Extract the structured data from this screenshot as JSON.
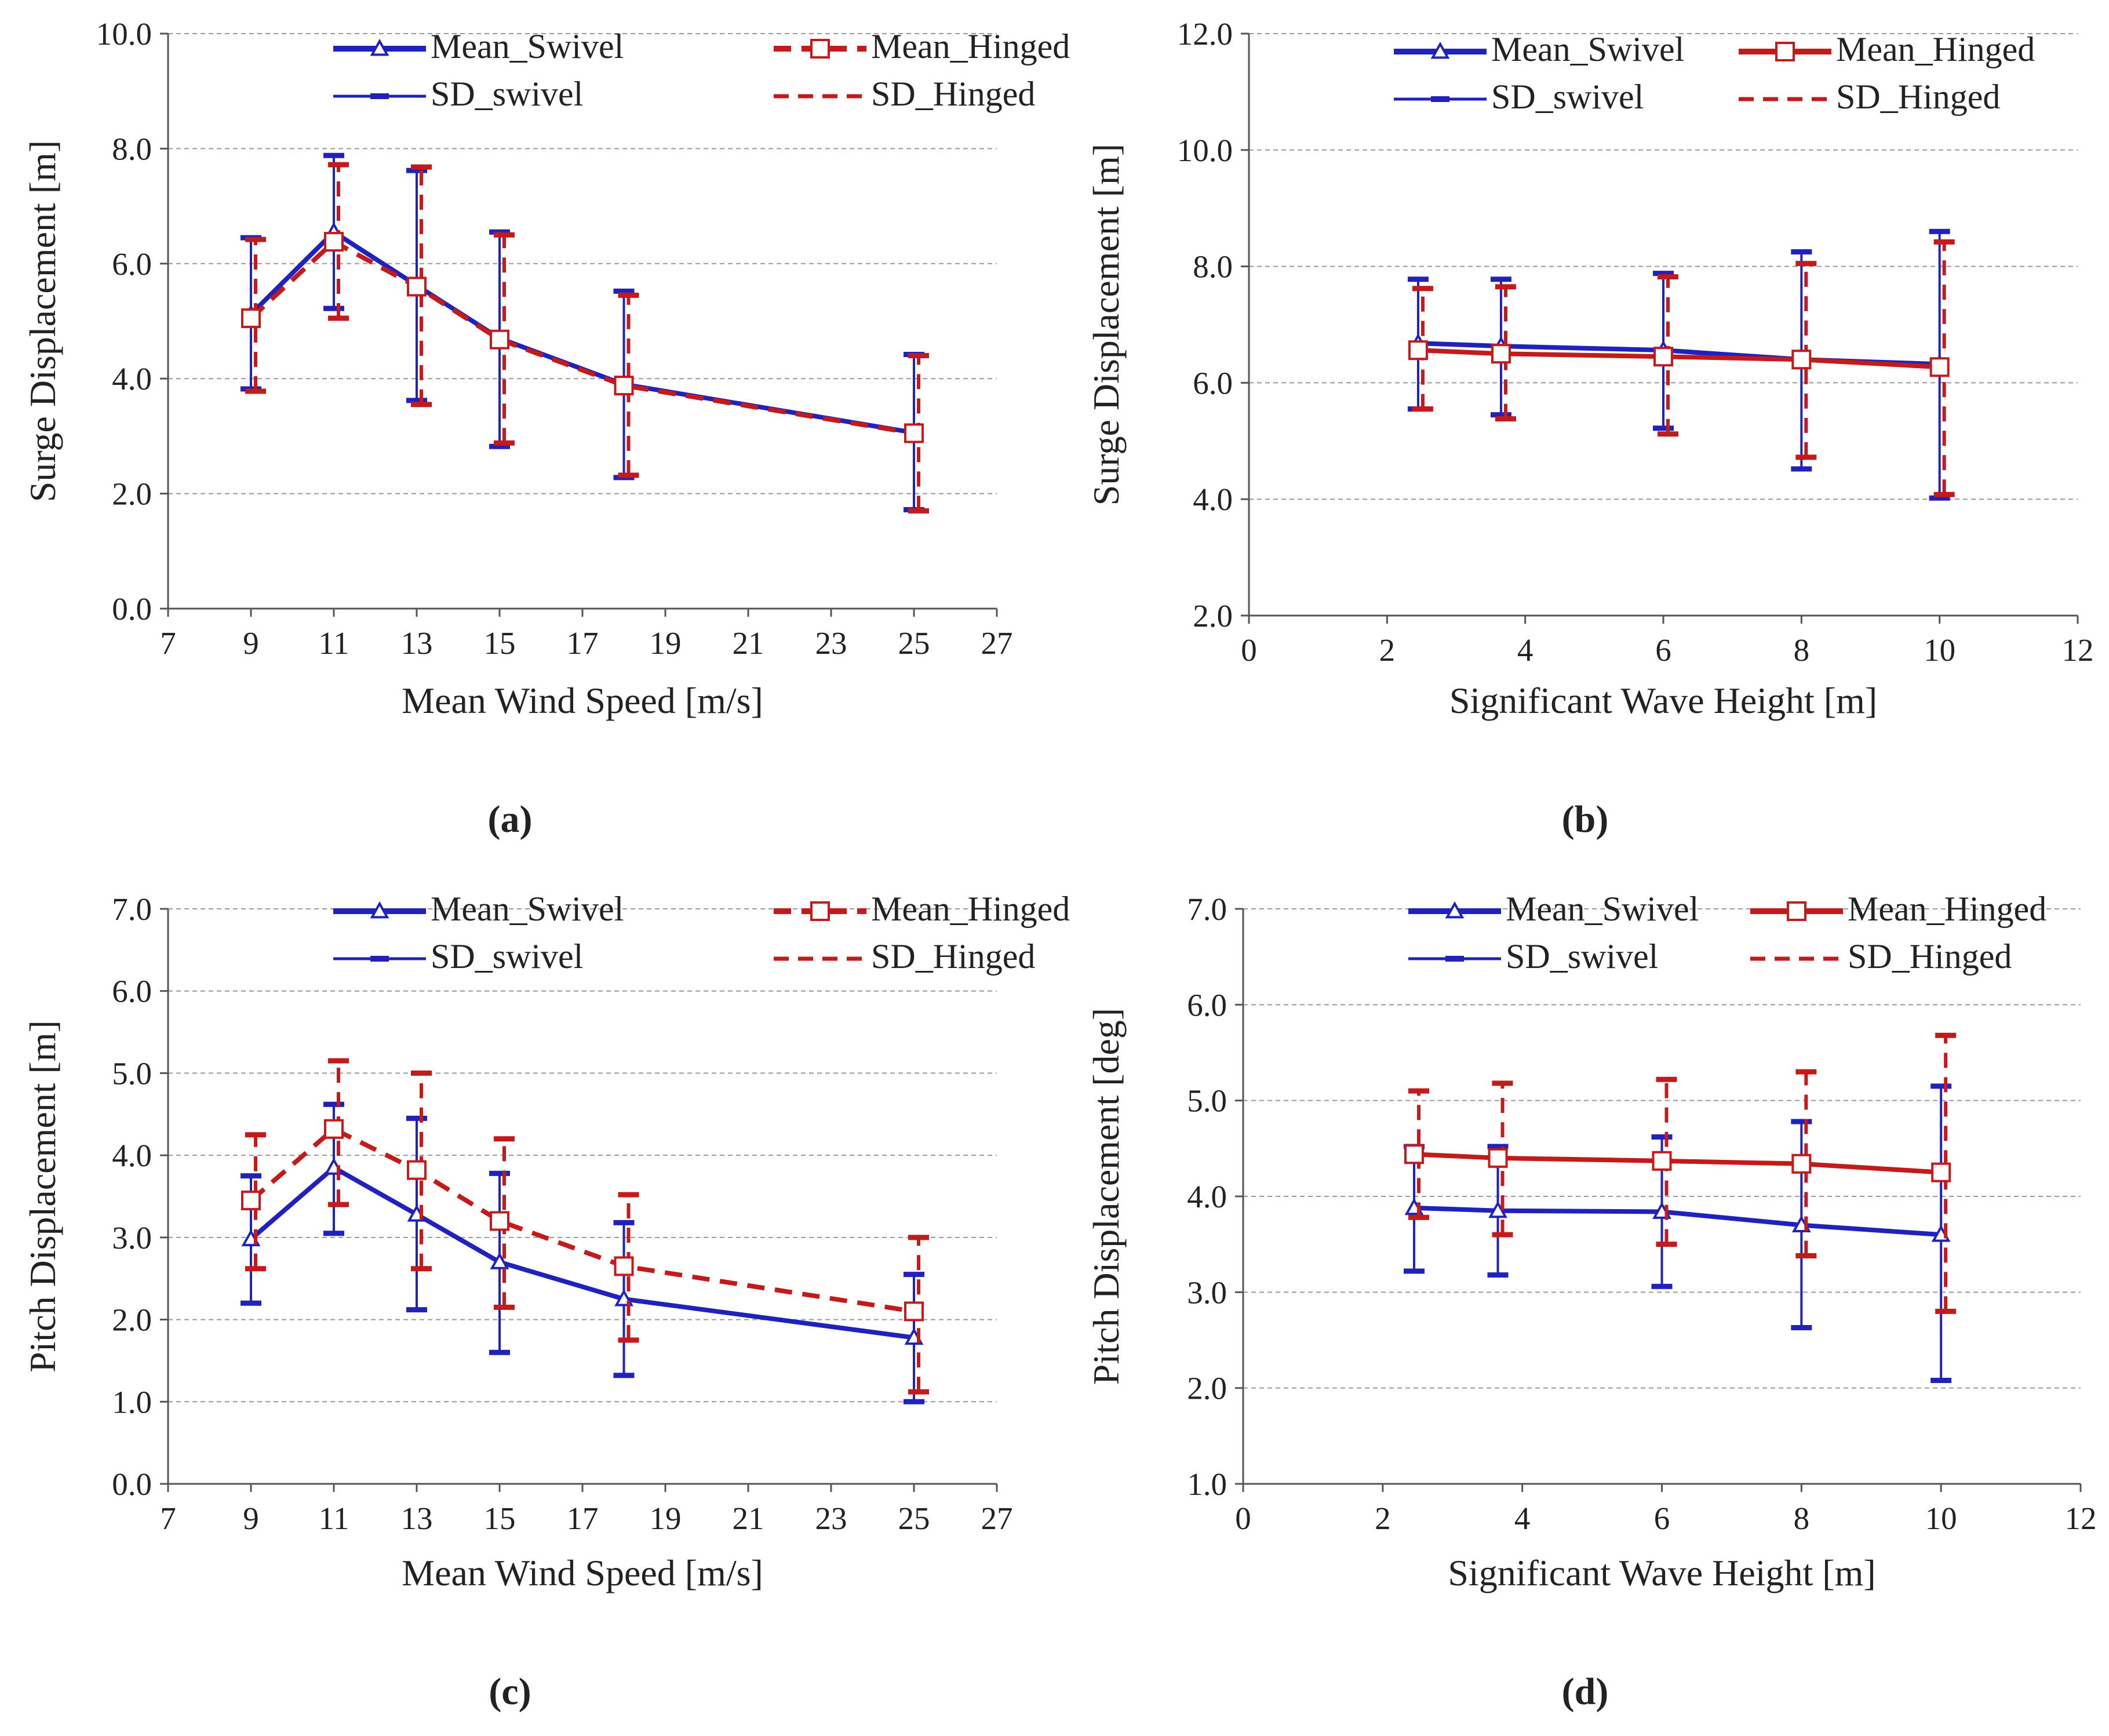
{
  "colors": {
    "swivel": "#1f22bd",
    "hinged": "#c41a1a",
    "grid": "#9a9a9a",
    "axis": "#555555"
  },
  "chart_data": [
    {
      "id": "a",
      "caption": "(a)",
      "type": "line",
      "xlabel": "Mean Wind Speed [m/s]",
      "ylabel": "Surge Displacement [m]",
      "xlim": [
        7,
        27
      ],
      "ylim": [
        0,
        10
      ],
      "xticks": [
        "7",
        "9",
        "11",
        "13",
        "15",
        "17",
        "19",
        "21",
        "23",
        "25",
        "27"
      ],
      "yticks": [
        "0.0",
        "2.0",
        "4.0",
        "6.0",
        "8.0",
        "10.0"
      ],
      "legend": [
        "Mean_Swivel",
        "Mean_Hinged",
        "SD_swivel",
        "SD_Hinged"
      ],
      "legend_position": "top-right",
      "grid": true,
      "hinged_line_style": "dashed",
      "x": [
        9,
        11,
        13,
        15,
        18,
        25
      ],
      "series": [
        {
          "name": "Mean_Swivel",
          "values": [
            5.12,
            6.55,
            5.62,
            4.7,
            3.9,
            3.06
          ],
          "sd_low": [
            3.82,
            5.22,
            3.62,
            2.82,
            2.28,
            1.72
          ],
          "sd_high": [
            6.45,
            7.88,
            7.62,
            6.55,
            5.52,
            4.42
          ]
        },
        {
          "name": "Mean_Hinged",
          "values": [
            5.05,
            6.38,
            5.6,
            4.68,
            3.88,
            3.05
          ],
          "sd_low": [
            3.78,
            5.05,
            3.55,
            2.88,
            2.32,
            1.7
          ],
          "sd_high": [
            6.42,
            7.72,
            7.68,
            6.5,
            5.45,
            4.4
          ]
        }
      ]
    },
    {
      "id": "b",
      "caption": "(b)",
      "type": "line",
      "xlabel": "Significant Wave Height [m]",
      "ylabel": "Surge Displacement [m]",
      "xlim": [
        0,
        12
      ],
      "ylim": [
        2,
        12
      ],
      "xticks": [
        "0",
        "2",
        "4",
        "6",
        "8",
        "10",
        "12"
      ],
      "yticks": [
        "2.0",
        "4.0",
        "6.0",
        "8.0",
        "10.0",
        "12.0"
      ],
      "legend": [
        "Mean_Swivel",
        "Mean_Hinged",
        "SD_swivel",
        "SD_Hinged"
      ],
      "legend_position": "top-right",
      "grid": true,
      "hinged_line_style": "solid",
      "x": [
        2.45,
        3.65,
        6.0,
        8.0,
        10.0
      ],
      "series": [
        {
          "name": "Mean_Swivel",
          "values": [
            6.68,
            6.63,
            6.56,
            6.4,
            6.32
          ],
          "sd_low": [
            5.55,
            5.45,
            5.22,
            4.52,
            4.02
          ],
          "sd_high": [
            7.78,
            7.78,
            7.88,
            8.25,
            8.6
          ]
        },
        {
          "name": "Mean_Hinged",
          "values": [
            6.56,
            6.5,
            6.45,
            6.4,
            6.27
          ],
          "sd_low": [
            5.55,
            5.38,
            5.12,
            4.72,
            4.08
          ],
          "sd_high": [
            7.62,
            7.65,
            7.82,
            8.05,
            8.42
          ]
        }
      ]
    },
    {
      "id": "c",
      "caption": "(c)",
      "type": "line",
      "xlabel": "Mean Wind Speed [m/s]",
      "ylabel": "Pitch Displacement [m]",
      "xlim": [
        7,
        27
      ],
      "ylim": [
        0,
        7
      ],
      "xticks": [
        "7",
        "9",
        "11",
        "13",
        "15",
        "17",
        "19",
        "21",
        "23",
        "25",
        "27"
      ],
      "yticks": [
        "0.0",
        "1.0",
        "2.0",
        "3.0",
        "4.0",
        "5.0",
        "6.0",
        "7.0"
      ],
      "legend": [
        "Mean_Swivel",
        "Mean_Hinged",
        "SD_swivel",
        "SD_Hinged"
      ],
      "legend_position": "top-right",
      "grid": true,
      "hinged_line_style": "dashed",
      "x": [
        9,
        11,
        13,
        15,
        18,
        25
      ],
      "series": [
        {
          "name": "Mean_Swivel",
          "values": [
            2.98,
            3.85,
            3.28,
            2.7,
            2.25,
            1.78
          ],
          "sd_low": [
            2.2,
            3.05,
            2.12,
            1.6,
            1.32,
            1.0
          ],
          "sd_high": [
            3.75,
            4.62,
            4.45,
            3.78,
            3.18,
            2.55
          ]
        },
        {
          "name": "Mean_Hinged",
          "values": [
            3.45,
            4.32,
            3.82,
            3.2,
            2.65,
            2.1
          ],
          "sd_low": [
            2.62,
            3.4,
            2.62,
            2.15,
            1.75,
            1.12
          ],
          "sd_high": [
            4.25,
            5.15,
            5.0,
            4.2,
            3.52,
            3.0
          ]
        }
      ]
    },
    {
      "id": "d",
      "caption": "(d)",
      "type": "line",
      "xlabel": "Significant Wave Height [m]",
      "ylabel": "Pitch Displacement [deg]",
      "xlim": [
        0,
        12
      ],
      "ylim": [
        1,
        7
      ],
      "xticks": [
        "0",
        "2",
        "4",
        "6",
        "8",
        "10",
        "12"
      ],
      "yticks": [
        "1.0",
        "2.0",
        "3.0",
        "4.0",
        "5.0",
        "6.0",
        "7.0"
      ],
      "legend": [
        "Mean_Swivel",
        "Mean_Hinged",
        "SD_swivel",
        "SD_Hinged"
      ],
      "legend_position": "top-right",
      "grid": true,
      "hinged_line_style": "solid",
      "x": [
        2.45,
        3.65,
        6.0,
        8.0,
        10.0
      ],
      "series": [
        {
          "name": "Mean_Swivel",
          "values": [
            3.88,
            3.85,
            3.84,
            3.7,
            3.6
          ],
          "sd_low": [
            3.22,
            3.18,
            3.06,
            2.63,
            2.08
          ],
          "sd_high": [
            4.52,
            4.52,
            4.62,
            4.78,
            5.15
          ]
        },
        {
          "name": "Mean_Hinged",
          "values": [
            4.44,
            4.4,
            4.37,
            4.34,
            4.25
          ],
          "sd_low": [
            3.78,
            3.6,
            3.5,
            3.38,
            2.8
          ],
          "sd_high": [
            5.1,
            5.18,
            5.22,
            5.3,
            5.68
          ]
        }
      ]
    }
  ]
}
